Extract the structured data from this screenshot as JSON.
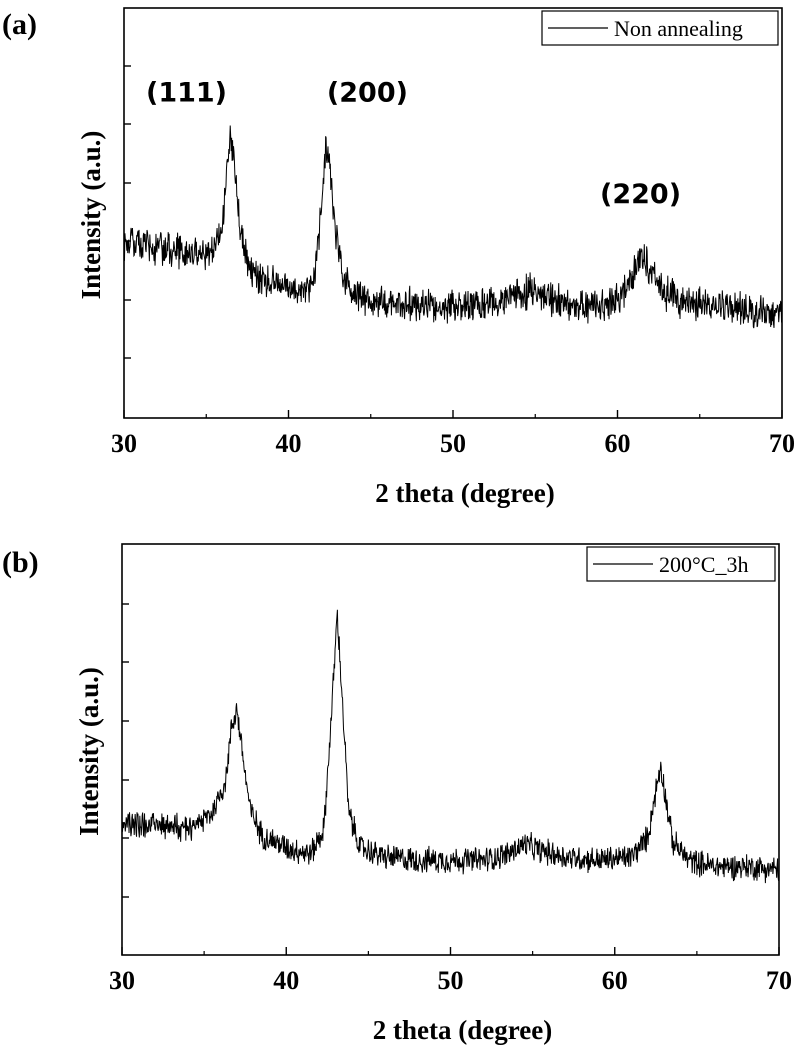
{
  "chart_data": [
    {
      "type": "line",
      "panel_label": "(a)",
      "xlabel": "2 theta (degree)",
      "ylabel": "Intensity (a.u.)",
      "xlim": [
        30,
        70
      ],
      "xticks": [
        30,
        40,
        50,
        60,
        70
      ],
      "y_tick_labels_shown": false,
      "grid": false,
      "legend": {
        "placement": "top-right"
      },
      "series": [
        {
          "name": "Non annealing",
          "color": "#000000",
          "noise": 0.05,
          "points": [
            [
              30,
              0.62
            ],
            [
              32,
              0.6
            ],
            [
              34,
              0.58
            ],
            [
              35,
              0.58
            ],
            [
              35.5,
              0.6
            ],
            [
              36,
              0.7
            ],
            [
              36.3,
              0.92
            ],
            [
              36.5,
              1.0
            ],
            [
              36.7,
              0.9
            ],
            [
              37,
              0.7
            ],
            [
              37.5,
              0.55
            ],
            [
              38,
              0.5
            ],
            [
              39,
              0.48
            ],
            [
              40,
              0.46
            ],
            [
              41,
              0.45
            ],
            [
              41.6,
              0.5
            ],
            [
              42,
              0.75
            ],
            [
              42.3,
              0.97
            ],
            [
              42.5,
              0.9
            ],
            [
              42.8,
              0.7
            ],
            [
              43.2,
              0.52
            ],
            [
              44,
              0.44
            ],
            [
              45,
              0.42
            ],
            [
              46,
              0.41
            ],
            [
              48,
              0.4
            ],
            [
              50,
              0.4
            ],
            [
              52,
              0.4
            ],
            [
              53,
              0.41
            ],
            [
              54,
              0.44
            ],
            [
              55,
              0.45
            ],
            [
              56,
              0.42
            ],
            [
              57,
              0.4
            ],
            [
              59,
              0.4
            ],
            [
              60,
              0.42
            ],
            [
              60.8,
              0.48
            ],
            [
              61.3,
              0.57
            ],
            [
              61.6,
              0.58
            ],
            [
              62,
              0.52
            ],
            [
              62.5,
              0.46
            ],
            [
              63,
              0.44
            ],
            [
              64,
              0.41
            ],
            [
              66,
              0.4
            ],
            [
              68,
              0.38
            ],
            [
              70,
              0.36
            ]
          ]
        }
      ],
      "annotations": [
        {
          "text": "(111)",
          "x": 33.8,
          "y": 1.12
        },
        {
          "text": "(200)",
          "x": 44.8,
          "y": 1.12
        },
        {
          "text": "(220)",
          "x": 61.4,
          "y": 0.76
        }
      ]
    },
    {
      "type": "line",
      "panel_label": "(b)",
      "xlabel": "2 theta (degree)",
      "ylabel": "Intensity (a.u.)",
      "xlim": [
        30,
        70
      ],
      "xticks": [
        30,
        40,
        50,
        60,
        70
      ],
      "y_tick_labels_shown": false,
      "grid": false,
      "legend": {
        "placement": "top-right"
      },
      "series": [
        {
          "name": "200°C_3h",
          "color": "#000000",
          "noise": 0.035,
          "points": [
            [
              30,
              0.42
            ],
            [
              32,
              0.41
            ],
            [
              34,
              0.4
            ],
            [
              35.5,
              0.45
            ],
            [
              36.3,
              0.55
            ],
            [
              36.7,
              0.73
            ],
            [
              37,
              0.78
            ],
            [
              37.3,
              0.65
            ],
            [
              37.8,
              0.46
            ],
            [
              38.5,
              0.38
            ],
            [
              40,
              0.34
            ],
            [
              41.5,
              0.32
            ],
            [
              42.3,
              0.4
            ],
            [
              42.8,
              0.8
            ],
            [
              43.1,
              1.08
            ],
            [
              43.4,
              0.82
            ],
            [
              43.8,
              0.45
            ],
            [
              44.5,
              0.34
            ],
            [
              46,
              0.31
            ],
            [
              48,
              0.3
            ],
            [
              50,
              0.3
            ],
            [
              52,
              0.3
            ],
            [
              53.5,
              0.32
            ],
            [
              54.5,
              0.35
            ],
            [
              55.5,
              0.33
            ],
            [
              57,
              0.31
            ],
            [
              59,
              0.3
            ],
            [
              61,
              0.31
            ],
            [
              62,
              0.37
            ],
            [
              62.5,
              0.52
            ],
            [
              62.8,
              0.6
            ],
            [
              63.1,
              0.5
            ],
            [
              63.5,
              0.36
            ],
            [
              64.5,
              0.3
            ],
            [
              66,
              0.28
            ],
            [
              68,
              0.28
            ],
            [
              70,
              0.27
            ]
          ]
        }
      ]
    }
  ]
}
